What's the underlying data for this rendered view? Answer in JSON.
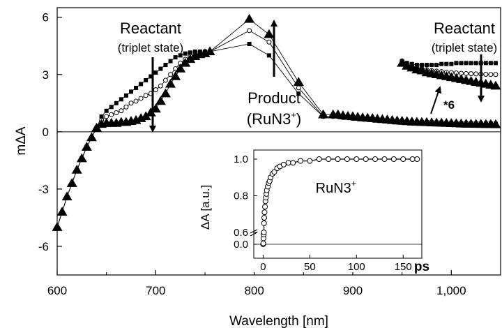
{
  "chart_data": {
    "type": "line",
    "xlabel": "Wavelength [nm]",
    "ylabel": "mΔA",
    "xlim": [
      600,
      1050
    ],
    "ylim": [
      -7.5,
      6.5
    ],
    "x_ticks": [
      "600",
      "700",
      "800",
      "900",
      "1,000"
    ],
    "y_ticks": [
      "-6",
      "-3",
      "0",
      "3",
      "6"
    ],
    "zero_line": true,
    "annotations": {
      "reactant_left_title": "Reactant",
      "reactant_left_sub": "(triplet state)",
      "reactant_right_title": "Reactant",
      "reactant_right_sub": "(triplet state)",
      "product_title": "Product",
      "product_sub": "(RuN3",
      "product_sup": "+",
      "product_close": ")",
      "scale_label": "*6"
    },
    "series": [
      {
        "marker": "square",
        "x": [
          600,
          605,
          610,
          615,
          620,
          625,
          630,
          635,
          640,
          645,
          650,
          655,
          660,
          665,
          670,
          675,
          680,
          685,
          690,
          695,
          700,
          705,
          710,
          715,
          720,
          725,
          730,
          735,
          740,
          745,
          750,
          755,
          795,
          815,
          845,
          870,
          880,
          885,
          890,
          895,
          900,
          905,
          910,
          915,
          920,
          925,
          930,
          935,
          940,
          945,
          950,
          955,
          960,
          965,
          970,
          975,
          980,
          985,
          990,
          995,
          1000,
          1005,
          1010,
          1015,
          1020,
          1025,
          1030,
          1035,
          1040,
          1045
        ],
        "y": [
          -5.0,
          -4.2,
          -3.4,
          -2.7,
          -2.0,
          -1.4,
          -0.8,
          -0.3,
          0.2,
          0.8,
          1.1,
          1.3,
          1.5,
          1.7,
          1.9,
          2.1,
          2.3,
          2.5,
          2.7,
          2.9,
          3.1,
          3.3,
          3.5,
          3.7,
          3.9,
          4.0,
          4.1,
          4.15,
          4.2,
          4.2,
          4.2,
          4.2,
          4.6,
          4.0,
          2.0,
          0.8,
          0.8,
          0.8,
          0.75,
          0.75,
          0.7,
          0.7,
          0.68,
          0.66,
          0.64,
          0.62,
          0.6,
          0.6,
          0.58,
          0.56,
          0.55,
          0.54,
          0.53,
          0.52,
          0.51,
          0.5,
          0.5,
          0.49,
          0.48,
          0.47,
          0.46,
          0.46,
          0.45,
          0.45,
          0.44,
          0.44,
          0.43,
          0.43,
          0.43,
          0.42
        ]
      },
      {
        "marker": "open-circle",
        "x": [
          600,
          605,
          610,
          615,
          620,
          625,
          630,
          635,
          640,
          645,
          650,
          655,
          660,
          665,
          670,
          675,
          680,
          685,
          690,
          695,
          700,
          705,
          710,
          715,
          720,
          725,
          730,
          735,
          740,
          745,
          750,
          755,
          795,
          815,
          845,
          870,
          880,
          885,
          890,
          895,
          900,
          905,
          910,
          915,
          920,
          925,
          930,
          935,
          940,
          945,
          950,
          955,
          960,
          965,
          970,
          975,
          980,
          985,
          990,
          995,
          1000,
          1005,
          1010,
          1015,
          1020,
          1025,
          1030,
          1035,
          1040,
          1045
        ],
        "y": [
          -5.0,
          -4.2,
          -3.4,
          -2.7,
          -2.0,
          -1.4,
          -0.8,
          -0.3,
          0.2,
          0.6,
          0.8,
          0.9,
          1.0,
          1.1,
          1.3,
          1.5,
          1.6,
          1.75,
          1.9,
          2.0,
          2.2,
          2.4,
          2.7,
          3.0,
          3.3,
          3.6,
          3.8,
          3.95,
          4.05,
          4.1,
          4.15,
          4.2,
          5.3,
          4.7,
          2.3,
          0.8,
          0.8,
          0.8,
          0.75,
          0.74,
          0.7,
          0.69,
          0.67,
          0.65,
          0.63,
          0.61,
          0.59,
          0.58,
          0.56,
          0.55,
          0.53,
          0.52,
          0.51,
          0.5,
          0.49,
          0.48,
          0.47,
          0.46,
          0.45,
          0.44,
          0.43,
          0.42,
          0.42,
          0.41,
          0.41,
          0.4,
          0.4,
          0.39,
          0.39,
          0.38
        ]
      },
      {
        "marker": "filled-triangle",
        "x": [
          600,
          605,
          610,
          615,
          620,
          625,
          630,
          635,
          640,
          645,
          650,
          655,
          660,
          665,
          670,
          675,
          680,
          685,
          690,
          695,
          700,
          705,
          710,
          715,
          720,
          725,
          730,
          735,
          740,
          745,
          750,
          755,
          795,
          815,
          845,
          870,
          880,
          885,
          890,
          895,
          900,
          905,
          910,
          915,
          920,
          925,
          930,
          935,
          940,
          945,
          950,
          955,
          960,
          965,
          970,
          975,
          980,
          985,
          990,
          995,
          1000,
          1005,
          1010,
          1015,
          1020,
          1025,
          1030,
          1035,
          1040,
          1045
        ],
        "y": [
          -5.0,
          -4.2,
          -3.4,
          -2.7,
          -2.0,
          -1.4,
          -0.8,
          -0.3,
          0.2,
          0.4,
          0.45,
          0.45,
          0.45,
          0.5,
          0.5,
          0.55,
          0.6,
          0.7,
          0.8,
          1.0,
          1.2,
          1.6,
          2.0,
          2.5,
          2.9,
          3.3,
          3.6,
          3.8,
          3.95,
          4.05,
          4.1,
          4.2,
          5.9,
          5.1,
          2.6,
          0.9,
          0.9,
          0.9,
          0.85,
          0.82,
          0.8,
          0.77,
          0.74,
          0.72,
          0.7,
          0.67,
          0.65,
          0.63,
          0.6,
          0.58,
          0.56,
          0.54,
          0.52,
          0.51,
          0.5,
          0.49,
          0.48,
          0.47,
          0.46,
          0.45,
          0.44,
          0.43,
          0.42,
          0.41,
          0.41,
          0.4,
          0.4,
          0.39,
          0.39,
          0.38
        ]
      },
      {
        "marker": "square",
        "note_label": "*6",
        "x": [
          950,
          955,
          960,
          965,
          970,
          975,
          980,
          985,
          990,
          995,
          1000,
          1005,
          1010,
          1015,
          1020,
          1025,
          1030,
          1035,
          1040,
          1045
        ],
        "y": [
          3.7,
          3.6,
          3.55,
          3.5,
          3.5,
          3.5,
          3.5,
          3.5,
          3.55,
          3.55,
          3.55,
          3.6,
          3.6,
          3.6,
          3.6,
          3.6,
          3.6,
          3.6,
          3.6,
          3.6
        ]
      },
      {
        "marker": "open-circle",
        "note_label": "*6",
        "x": [
          950,
          955,
          960,
          965,
          970,
          975,
          980,
          985,
          990,
          995,
          1000,
          1005,
          1010,
          1015,
          1020,
          1025,
          1030,
          1035,
          1040,
          1045
        ],
        "y": [
          3.7,
          3.55,
          3.45,
          3.35,
          3.3,
          3.25,
          3.2,
          3.18,
          3.15,
          3.12,
          3.1,
          3.08,
          3.06,
          3.05,
          3.04,
          3.03,
          3.02,
          3.01,
          3.0,
          3.0
        ]
      },
      {
        "marker": "filled-triangle",
        "note_label": "*6",
        "x": [
          950,
          955,
          960,
          965,
          970,
          975,
          980,
          985,
          990,
          995,
          1000,
          1005,
          1010,
          1015,
          1020,
          1025,
          1030,
          1035,
          1040,
          1045
        ],
        "y": [
          3.6,
          3.45,
          3.35,
          3.25,
          3.2,
          3.1,
          3.05,
          3.0,
          2.95,
          2.9,
          2.85,
          2.8,
          2.75,
          2.7,
          2.65,
          2.6,
          2.55,
          2.5,
          2.45,
          2.4
        ]
      }
    ],
    "inset": {
      "type": "scatter",
      "xlabel": "ps",
      "ylabel": "ΔA  [a.u.]",
      "title": "RuN3",
      "title_sup": "+",
      "x_ticks": [
        "0",
        "50",
        "100",
        "150"
      ],
      "y_ticks": [
        "0.0",
        "0.6",
        "0.8",
        "1.0"
      ],
      "xlim": [
        -10,
        170
      ],
      "ylim": [
        0.0,
        1.05
      ],
      "y_break": true,
      "series": [
        {
          "marker": "open-circle",
          "x": [
            0,
            0.2,
            0.4,
            0.6,
            0.8,
            1,
            1.2,
            1.5,
            2,
            2.5,
            3,
            3.5,
            4,
            5,
            6,
            7,
            8,
            10,
            12,
            15,
            18,
            22,
            27,
            32,
            40,
            50,
            60,
            70,
            80,
            90,
            100,
            110,
            120,
            130,
            140,
            150,
            160,
            165
          ],
          "y": [
            0.0,
            0.05,
            0.3,
            0.5,
            0.6,
            0.65,
            0.68,
            0.71,
            0.74,
            0.77,
            0.79,
            0.81,
            0.83,
            0.85,
            0.87,
            0.88,
            0.9,
            0.92,
            0.93,
            0.95,
            0.96,
            0.97,
            0.98,
            0.98,
            0.99,
            0.99,
            1.0,
            1.0,
            1.0,
            1.0,
            1.0,
            1.0,
            1.0,
            1.0,
            1.0,
            1.0,
            1.0,
            1.0
          ]
        }
      ]
    }
  }
}
